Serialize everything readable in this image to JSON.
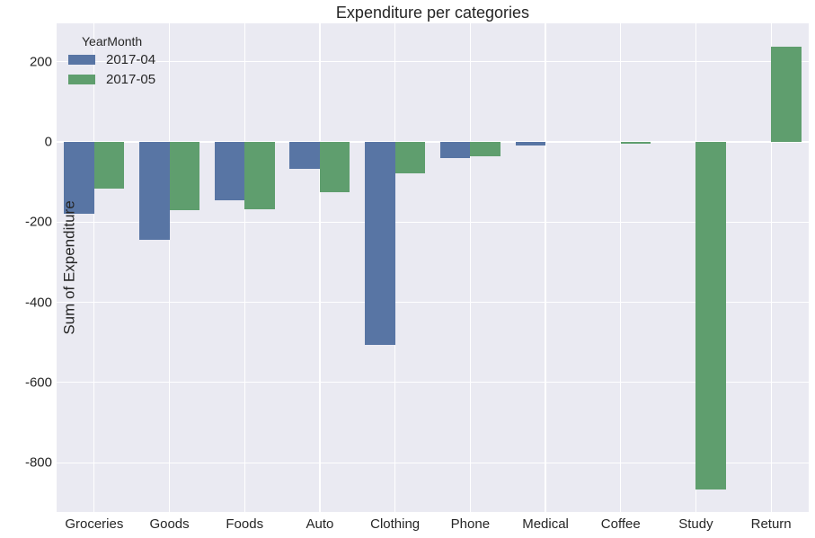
{
  "chart_data": {
    "type": "bar",
    "title": "Expenditure per categories",
    "xlabel": "",
    "ylabel": "Sum of Expenditure",
    "categories": [
      "Groceries",
      "Goods",
      "Foods",
      "Auto",
      "Clothing",
      "Phone",
      "Medical",
      "Coffee",
      "Study",
      "Return"
    ],
    "series": [
      {
        "name": "2017-04",
        "color": "#5875a4",
        "values": [
          -180,
          -244,
          -146,
          -67,
          -506,
          -40,
          -9,
          0,
          0,
          0
        ]
      },
      {
        "name": "2017-05",
        "color": "#5f9e6e",
        "values": [
          -117,
          -170,
          -168,
          -125,
          -78,
          -36,
          0,
          -2,
          -867,
          237
        ]
      }
    ],
    "legend": {
      "title": "YearMonth",
      "position": "upper left"
    },
    "ylim": [
      -925,
      295
    ],
    "yticks": [
      200,
      0,
      -200,
      -400,
      -600,
      -800
    ],
    "ytick_labels": [
      "200",
      "0",
      "-200",
      "-400",
      "-600",
      "-800"
    ],
    "grid": true
  }
}
